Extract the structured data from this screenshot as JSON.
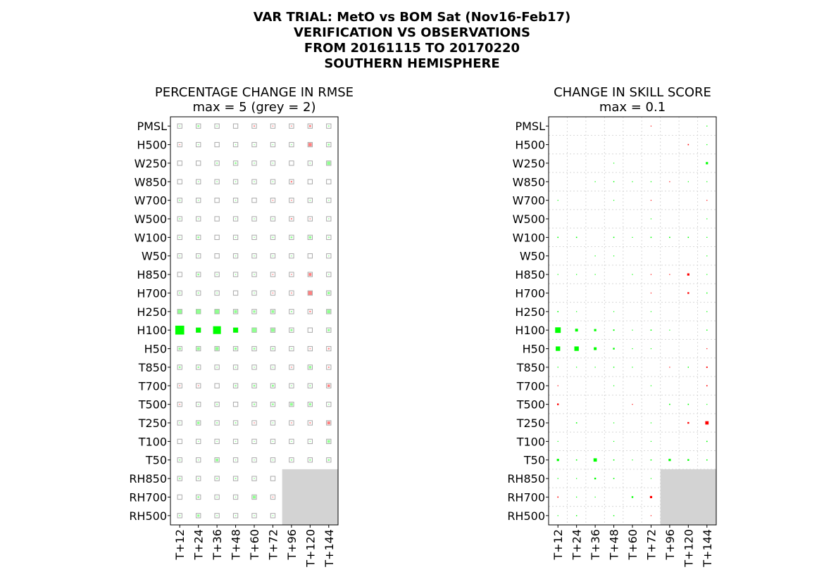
{
  "title": {
    "lines": [
      "VAR TRIAL: MetO vs BOM Sat (Nov16-Feb17)",
      "VERIFICATION VS OBSERVATIONS",
      "FROM 20161115 TO 20170220",
      "SOUTHERN HEMISPHERE"
    ]
  },
  "colors": {
    "improve": "#00ff00",
    "degrade": "#ff0000",
    "improve_light": "#90ff90",
    "degrade_light": "#ff8080",
    "ref_box": "#aaaaaa",
    "missing": "#d3d3d3",
    "grid": "#d8d8d8"
  },
  "chart_data": [
    {
      "type": "heatmap",
      "title": "PERCENTAGE CHANGE IN RMSE",
      "subtitle": "max = 5 (grey = 2)",
      "xlabel": "",
      "ylabel": "",
      "columns": [
        "T+12",
        "T+24",
        "T+36",
        "T+48",
        "T+60",
        "T+72",
        "T+96",
        "T+120",
        "T+144"
      ],
      "rows": [
        "PMSL",
        "H500",
        "W250",
        "W850",
        "W700",
        "W500",
        "W100",
        "W50",
        "H850",
        "H700",
        "H250",
        "H100",
        "H50",
        "T850",
        "T700",
        "T500",
        "T250",
        "T100",
        "T50",
        "RH850",
        "RH700",
        "RH500"
      ],
      "max": 5,
      "reference_box": 2,
      "missing": "RH850-RH500 at T+96, T+120, T+144",
      "values": [
        [
          -0.5,
          -0.8,
          -0.4,
          0,
          0.6,
          0.4,
          0.3,
          0.9,
          -0.6
        ],
        [
          0.3,
          -0.3,
          0,
          -0.3,
          -0.4,
          -0.2,
          -0.3,
          1.5,
          -0.8
        ],
        [
          0,
          0,
          -0.6,
          -0.8,
          -0.5,
          -0.3,
          0,
          -0.3,
          -1.5
        ],
        [
          0,
          -0.2,
          -0.3,
          -0.4,
          -0.3,
          -0.3,
          0.7,
          0,
          0
        ],
        [
          -0.6,
          -0.3,
          0,
          -0.3,
          0,
          0.4,
          0.3,
          -0.5,
          -0.1
        ],
        [
          -0.6,
          -0.3,
          0,
          -0.3,
          -0.3,
          -0.5,
          0.6,
          0.1,
          -0.4
        ],
        [
          -0.5,
          -0.8,
          0,
          -0.4,
          -0.4,
          -0.6,
          -0.8,
          -1.1,
          -0.6
        ],
        [
          -0.2,
          -0.1,
          0,
          -0.2,
          -0.3,
          -0.4,
          -0.2,
          0,
          -0.4
        ],
        [
          0,
          -0.8,
          -0.4,
          -0.3,
          -0.4,
          0.4,
          0.2,
          1.3,
          -0.3
        ],
        [
          -0.6,
          -0.6,
          -0.5,
          0,
          -0.3,
          0.5,
          0.5,
          1.7,
          -1.1
        ],
        [
          -1.7,
          -1.9,
          -1.8,
          -1.3,
          -1.0,
          -1.2,
          -0.6,
          0.7,
          -1.5
        ],
        [
          -4.0,
          -2.2,
          -3.5,
          -2.2,
          -1.9,
          -1.5,
          -0.9,
          0,
          -1.0
        ],
        [
          -1.0,
          -1.3,
          -1.4,
          -1.0,
          -0.8,
          -0.7,
          -0.2,
          0.2,
          0.7
        ],
        [
          -0.8,
          -0.7,
          -0.3,
          -0.5,
          -0.4,
          -0.1,
          0.2,
          -1.1,
          0.6
        ],
        [
          0.5,
          0.3,
          0,
          -0.7,
          -0.8,
          -0.9,
          -0.2,
          -0.6,
          1.1
        ],
        [
          0.5,
          -0.1,
          -0.6,
          0,
          -0.7,
          -0.8,
          -1.2,
          -1.0,
          -0.4
        ],
        [
          -0.2,
          -1.1,
          -0.6,
          -0.6,
          0.1,
          -0.4,
          0.2,
          0.6,
          1.3
        ],
        [
          0,
          -0.3,
          -0.4,
          -0.3,
          -0.3,
          -0.4,
          -0.1,
          -0.4,
          -1.2
        ],
        [
          -0.6,
          -0.2,
          -1.2,
          -0.3,
          -0.3,
          -0.5,
          -0.6,
          -0.7,
          -0.8
        ],
        [
          -0.7,
          -0.5,
          -0.6,
          -0.6,
          -0.3,
          0,
          null,
          null,
          null
        ],
        [
          0,
          -0.8,
          -0.2,
          -0.3,
          -1.3,
          0.1,
          null,
          null,
          null
        ],
        [
          -0.6,
          -1.0,
          -0.5,
          -0.5,
          -0.3,
          -0.1,
          null,
          null,
          null
        ]
      ]
    },
    {
      "type": "heatmap",
      "title": "CHANGE IN SKILL SCORE",
      "subtitle": "max = 0.1",
      "xlabel": "",
      "ylabel": "",
      "columns": [
        "T+12",
        "T+24",
        "T+36",
        "T+48",
        "T+60",
        "T+72",
        "T+96",
        "T+120",
        "T+144"
      ],
      "rows": [
        "PMSL",
        "H500",
        "W250",
        "W850",
        "W700",
        "W500",
        "W100",
        "W50",
        "H850",
        "H700",
        "H250",
        "H100",
        "H50",
        "T850",
        "T700",
        "T500",
        "T250",
        "T100",
        "T50",
        "RH850",
        "RH700",
        "RH500"
      ],
      "max": 0.1,
      "missing": "RH850-RH500 at T+96, T+120, T+144",
      "values": [
        [
          0,
          0,
          0,
          0,
          0,
          -0.003,
          0,
          0,
          0.008
        ],
        [
          0,
          0,
          0,
          0,
          0,
          0,
          0,
          -0.01,
          0.008
        ],
        [
          0,
          0,
          0,
          0.003,
          0,
          0,
          0,
          0,
          0.02
        ],
        [
          0,
          0,
          0.004,
          0.009,
          0.004,
          0.008,
          -0.004,
          0.003,
          0.003
        ],
        [
          0.003,
          0,
          0,
          0.003,
          0,
          -0.003,
          0,
          0,
          -0.003
        ],
        [
          0,
          0,
          0,
          0,
          0,
          0.003,
          0,
          0,
          0.003
        ],
        [
          0.01,
          0.01,
          0,
          0.01,
          0.004,
          0.01,
          0.01,
          0.01,
          0.008
        ],
        [
          0,
          0,
          0.003,
          0.003,
          0,
          0,
          0,
          0,
          0.003
        ],
        [
          0.003,
          0.003,
          0.003,
          0,
          0.003,
          -0.004,
          -0.004,
          -0.02,
          0.004
        ],
        [
          0,
          0,
          0,
          0,
          0,
          -0.003,
          0,
          -0.015,
          0.009
        ],
        [
          0.01,
          0.003,
          0,
          0.003,
          0,
          0.003,
          0,
          0,
          0.008
        ],
        [
          0.05,
          0.025,
          0.02,
          0.012,
          0.004,
          0.01,
          0.003,
          0,
          0.009
        ],
        [
          0.04,
          0.04,
          0.025,
          0.015,
          0.004,
          0.003,
          0,
          0,
          -0.003
        ],
        [
          0.008,
          0.003,
          0.003,
          0.009,
          0.004,
          0,
          -0.004,
          0.009,
          -0.012
        ],
        [
          -0.003,
          0,
          0,
          0.003,
          0,
          0.003,
          0,
          0,
          -0.01
        ],
        [
          -0.015,
          0,
          0,
          0,
          -0.003,
          0,
          0.01,
          0.01,
          0.003
        ],
        [
          0,
          0.01,
          0,
          0.003,
          0,
          0.003,
          0,
          -0.015,
          -0.03
        ],
        [
          0.003,
          0,
          0,
          0.003,
          0,
          0.003,
          0,
          0,
          0.01
        ],
        [
          0.02,
          0.01,
          0.03,
          0.01,
          0.004,
          0.01,
          0.02,
          0.015,
          0.01
        ],
        [
          0.008,
          0.003,
          0.015,
          0.01,
          0,
          0.003,
          null,
          null,
          null
        ],
        [
          -0.01,
          0.008,
          0.003,
          0,
          0.015,
          -0.02,
          null,
          null,
          null
        ],
        [
          0.003,
          0.009,
          0,
          0.009,
          0,
          -0.004,
          null,
          null,
          null
        ]
      ]
    }
  ]
}
